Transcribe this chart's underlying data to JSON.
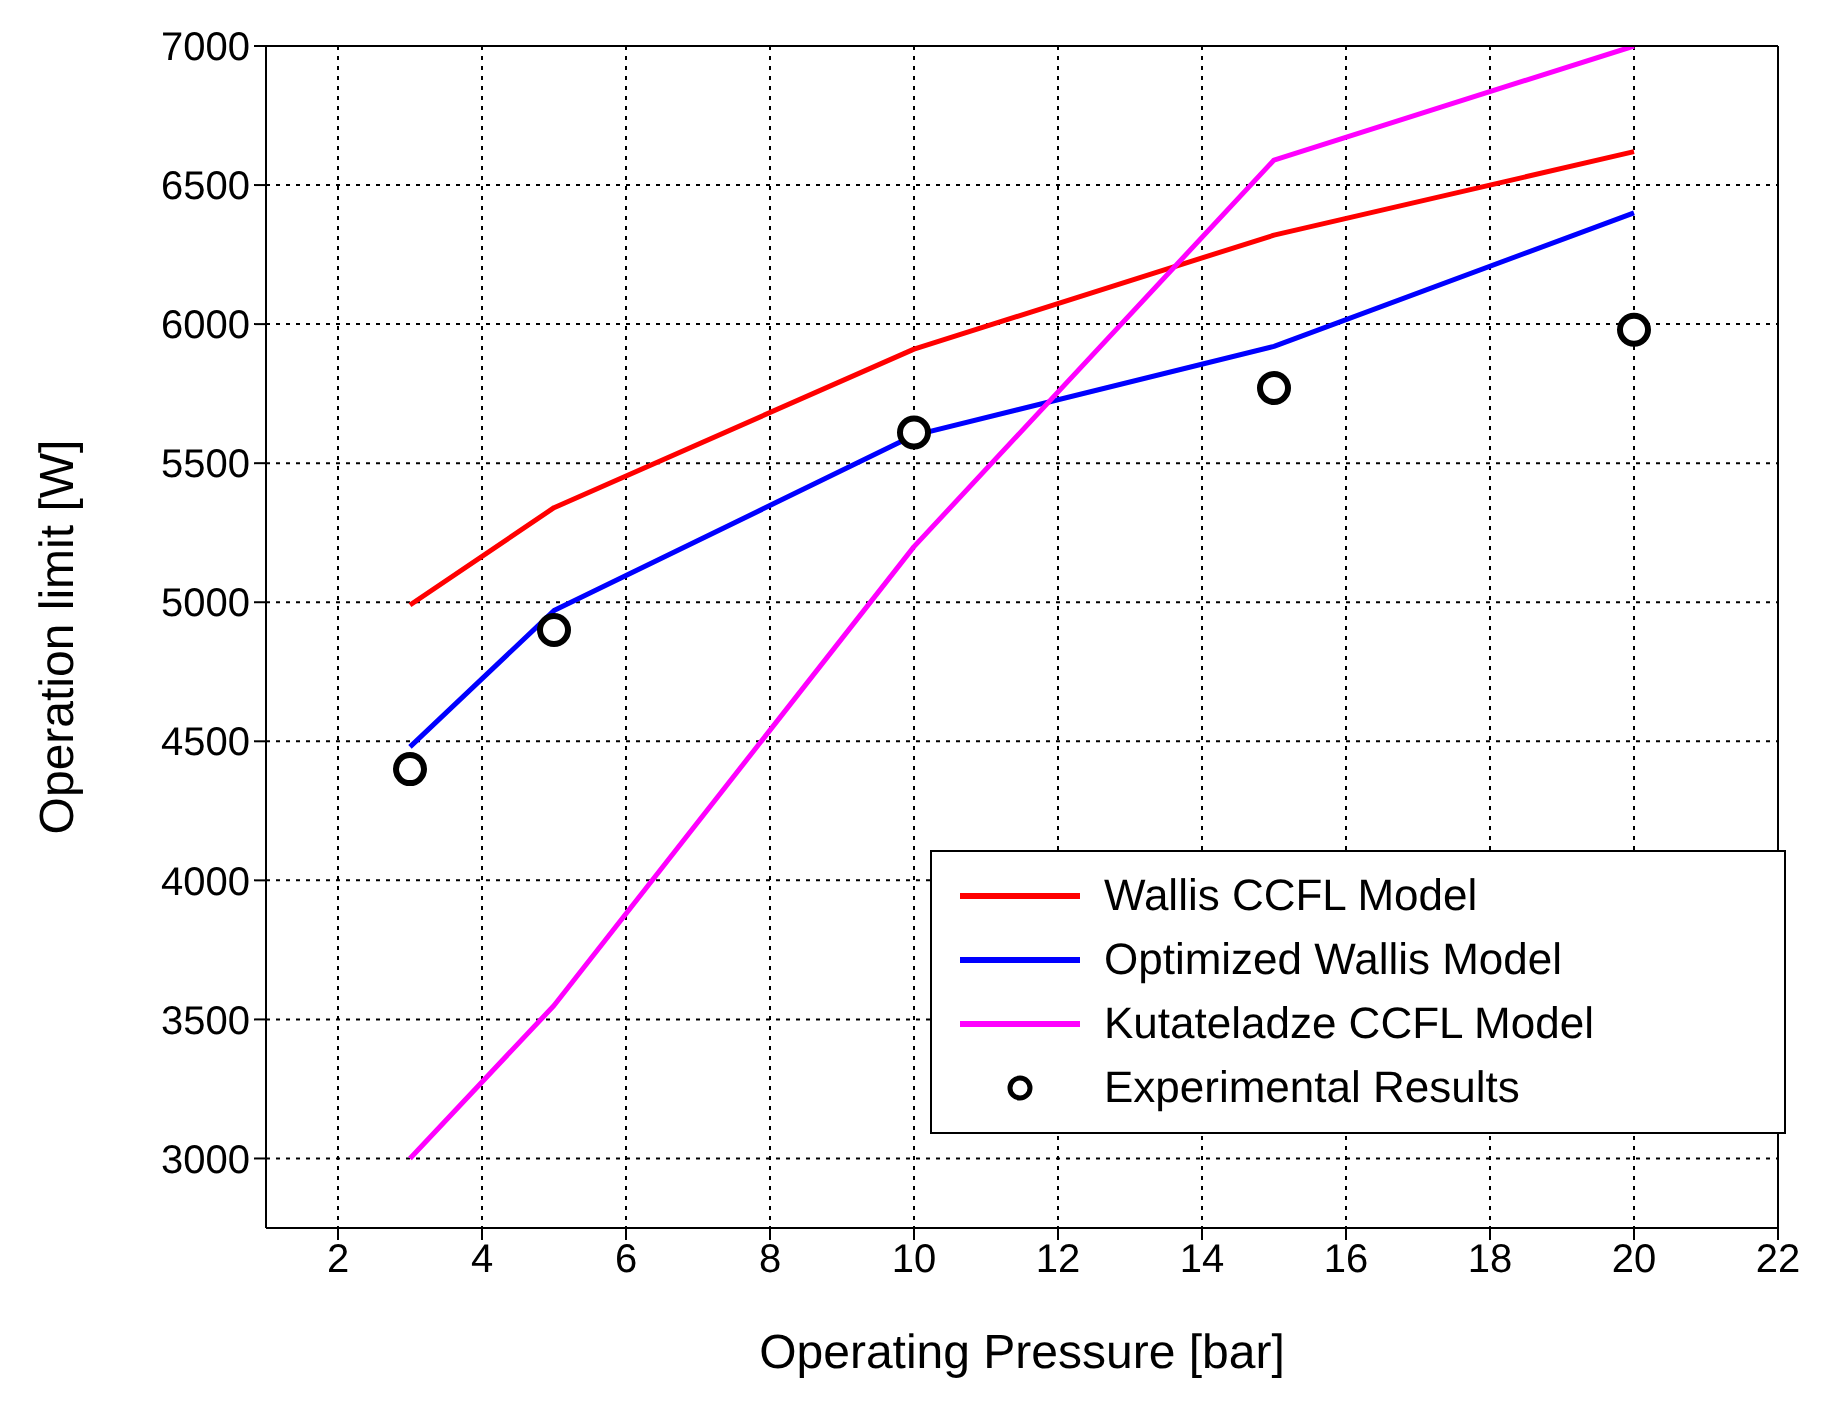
{
  "chart_data": {
    "type": "line",
    "xlabel": "Operating Pressure [bar]",
    "ylabel": "Operation limit [W]",
    "x": [
      3,
      5,
      10,
      15,
      20
    ],
    "series": [
      {
        "name": "Wallis CCFL Model",
        "color": "#ff0000",
        "values": [
          4990,
          5340,
          5910,
          6320,
          6620
        ]
      },
      {
        "name": "Optimized Wallis Model",
        "color": "#0000ff",
        "values": [
          4480,
          4970,
          5600,
          5920,
          6400
        ]
      },
      {
        "name": "Kutateladze CCFL Model",
        "color": "#ff00ff",
        "values": [
          3000,
          3550,
          5200,
          6590,
          7000
        ]
      },
      {
        "name": "Experimental Results",
        "type": "scatter",
        "color": "#000000",
        "marker": "circle",
        "values": [
          4400,
          4900,
          5610,
          5770,
          5980
        ]
      }
    ],
    "xlim": [
      1,
      22
    ],
    "xticks": [
      2,
      4,
      6,
      8,
      10,
      12,
      14,
      16,
      18,
      20,
      22
    ],
    "ylim": [
      2750,
      7000
    ],
    "yticks": [
      3000,
      3500,
      4000,
      4500,
      5000,
      5500,
      6000,
      6500,
      7000
    ],
    "grid": true,
    "legend": "bottom right",
    "marker": "none",
    "line_style": "solid"
  }
}
